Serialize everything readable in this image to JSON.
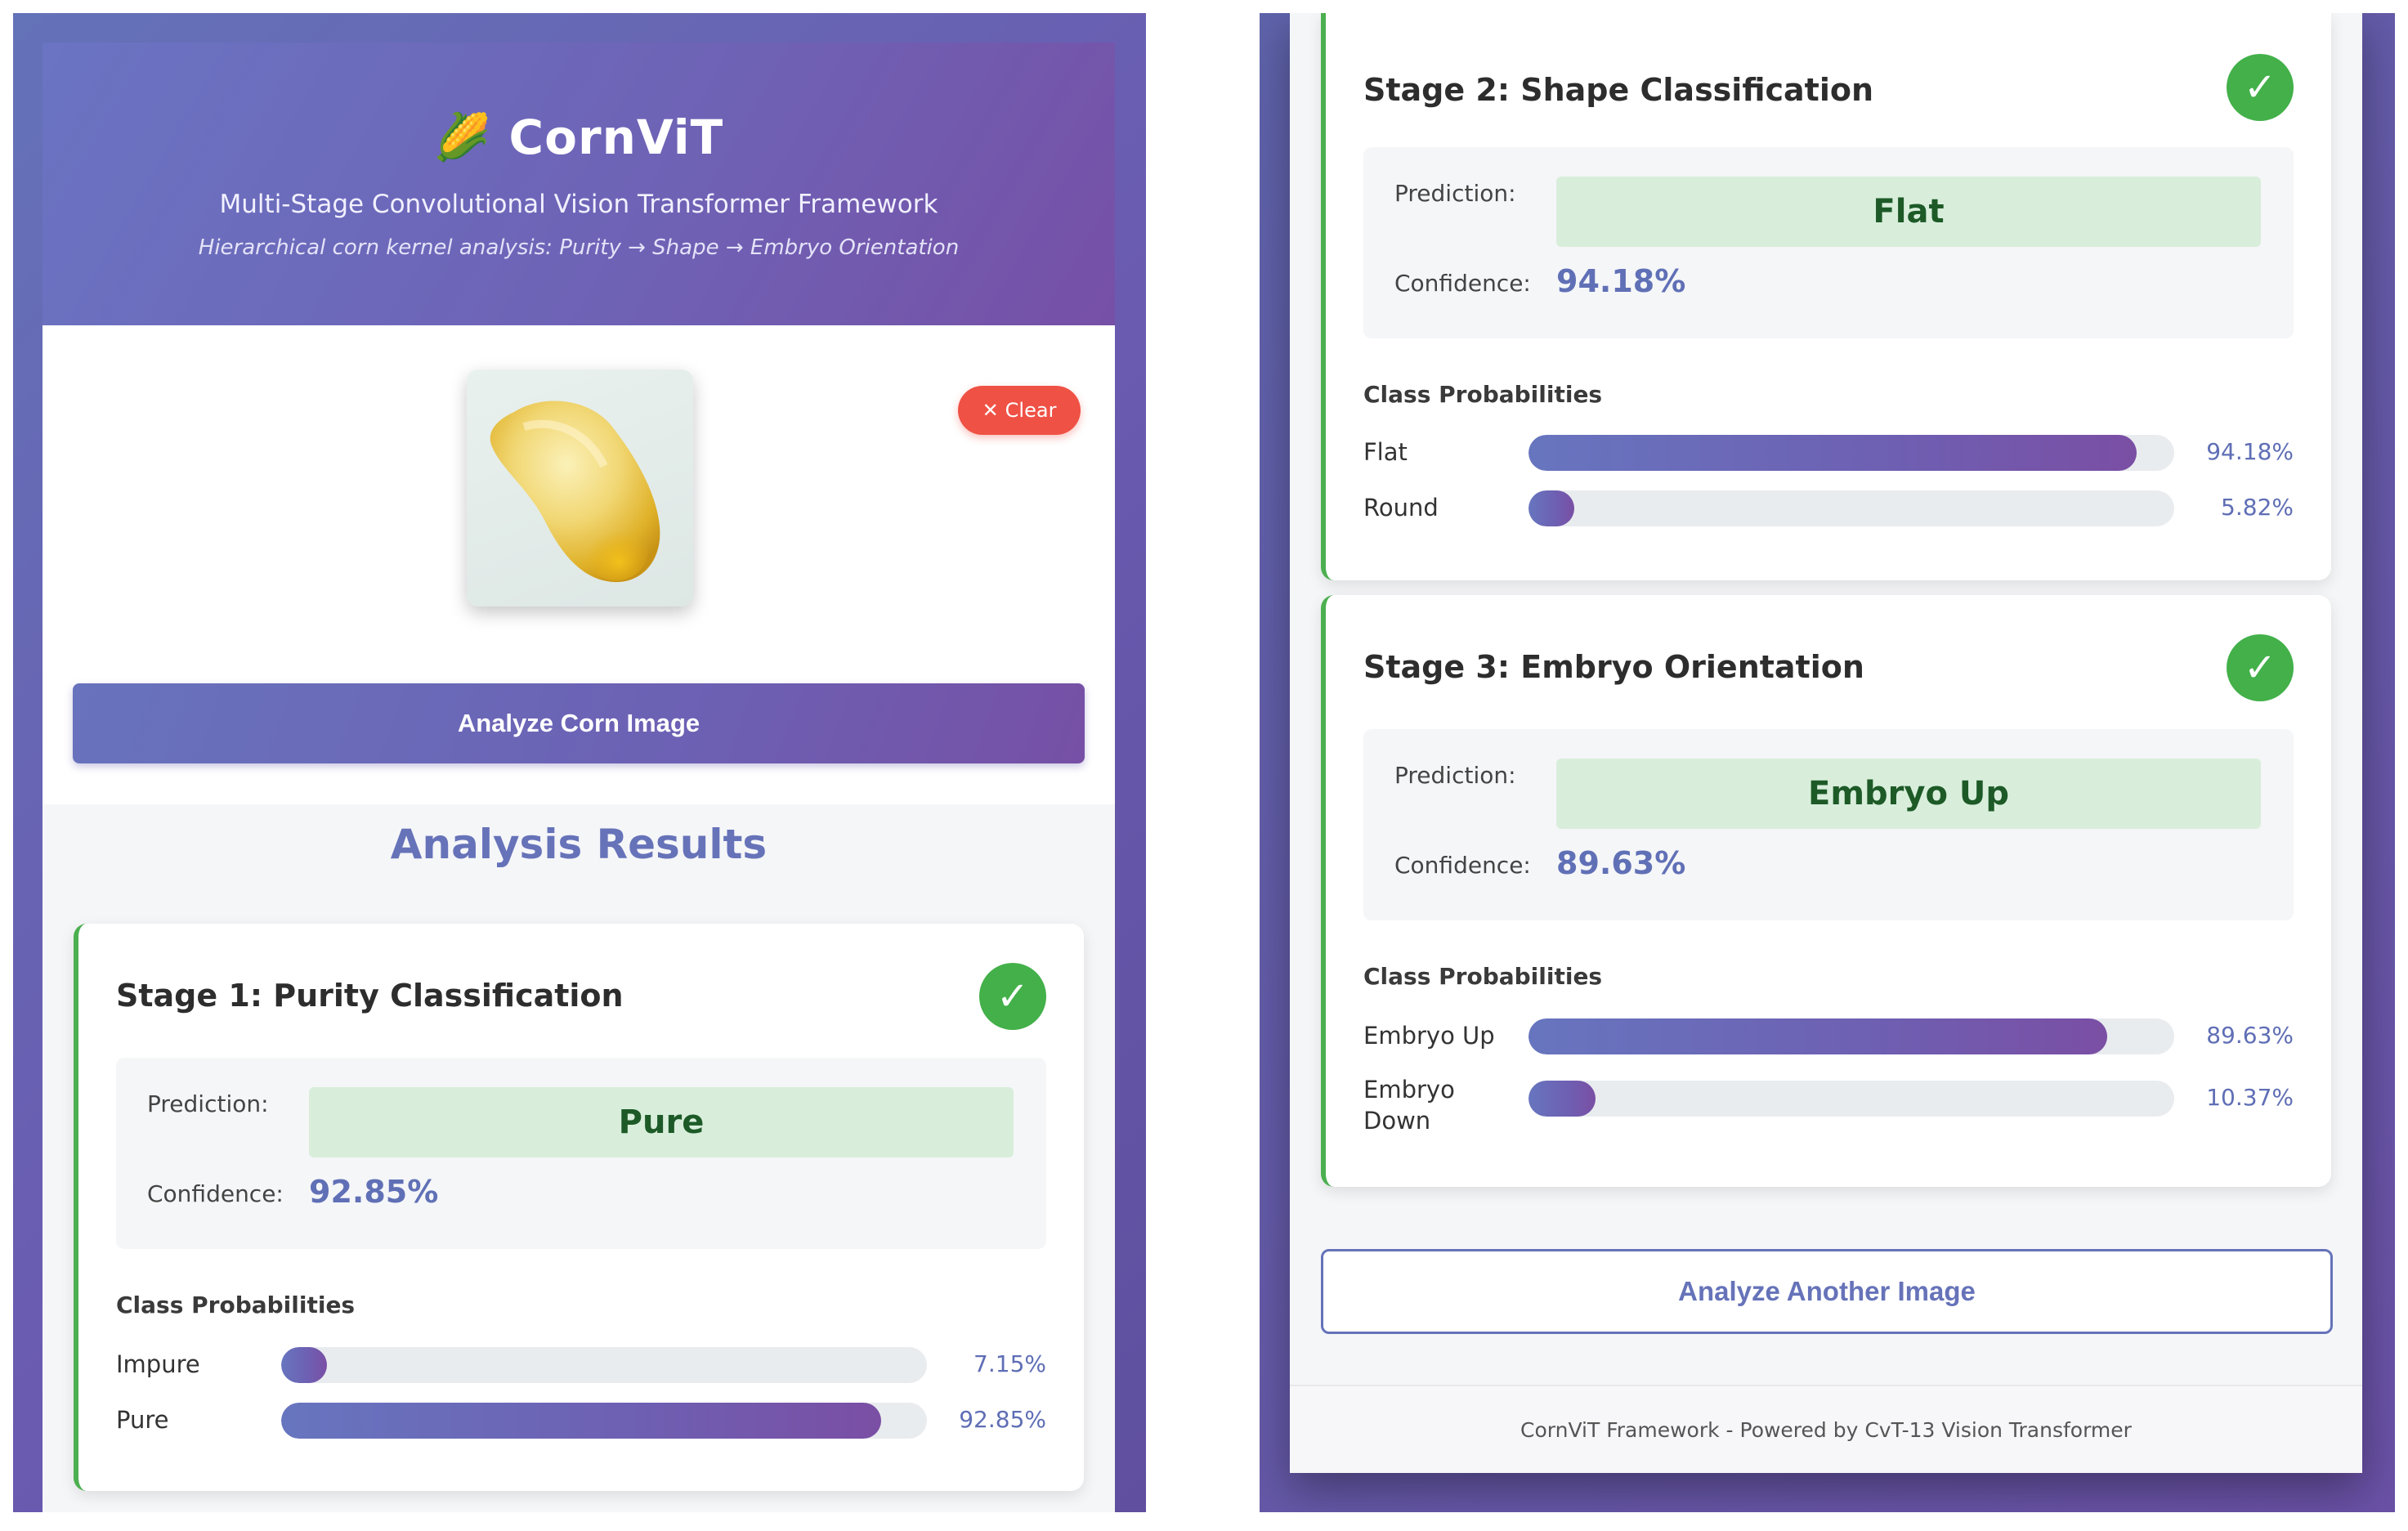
{
  "app": {
    "title": "CornViT",
    "logo_emoji": "🌽",
    "subtitle": "Multi-Stage Convolutional Vision Transformer Framework",
    "pipeline": "Hierarchical corn kernel analysis: Purity → Shape → Embryo Orientation"
  },
  "upload": {
    "clear_icon": "✕",
    "clear_label": "Clear",
    "analyze_label": "Analyze Corn Image"
  },
  "results": {
    "title": "Analysis Results",
    "prediction_label": "Prediction:",
    "confidence_label": "Confidence:",
    "probabilities_label": "Class Probabilities",
    "check_icon": "✓",
    "stages": [
      {
        "title": "Stage 1: Purity Classification",
        "prediction": "Pure",
        "confidence": "92.85%",
        "classes": [
          {
            "name": "Impure",
            "pct": "7.15%",
            "value": 7.15
          },
          {
            "name": "Pure",
            "pct": "92.85%",
            "value": 92.85
          }
        ]
      },
      {
        "title": "Stage 2: Shape Classification",
        "prediction": "Flat",
        "confidence": "94.18%",
        "classes": [
          {
            "name": "Flat",
            "pct": "94.18%",
            "value": 94.18
          },
          {
            "name": "Round",
            "pct": "5.82%",
            "value": 5.82
          }
        ]
      },
      {
        "title": "Stage 3: Embryo Orientation",
        "prediction": "Embryo Up",
        "confidence": "89.63%",
        "classes": [
          {
            "name": "Embryo Up",
            "pct": "89.63%",
            "value": 89.63
          },
          {
            "name": "Embryo Down",
            "pct": "10.37%",
            "value": 10.37
          }
        ]
      }
    ],
    "another_label": "Analyze Another Image"
  },
  "footer": {
    "text": "CornViT Framework - Powered by CvT-13 Vision Transformer"
  },
  "colors": {
    "accent": "#6673b9",
    "success": "#43b04a",
    "danger": "#ef5145",
    "prediction_bg": "#d8eedb"
  }
}
